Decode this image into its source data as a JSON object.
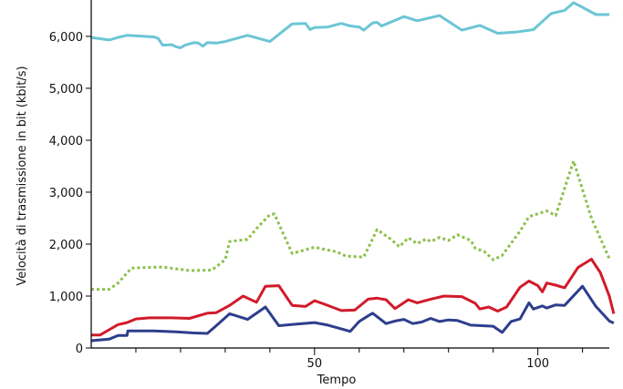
{
  "chart_data": {
    "type": "line",
    "title": "",
    "xlabel": "Tempo",
    "ylabel": "Velocità di trasmissione in bit (kbit/s)",
    "xlim": [
      0,
      116
    ],
    "ylim": [
      0,
      6700
    ],
    "x_ticks": [
      50,
      100
    ],
    "y_ticks": [
      0,
      1000,
      2000,
      3000,
      4000,
      5000,
      6000
    ],
    "y_tick_labels": [
      "0",
      "1,000",
      "2,000",
      "3,000",
      "4,000",
      "5,000",
      "6,000"
    ],
    "grid": false,
    "legend": "none",
    "series": [
      {
        "color": "#6cc5d6",
        "style": "solid",
        "points": [
          [
            0,
            5980
          ],
          [
            4,
            5930
          ],
          [
            6,
            5980
          ],
          [
            8,
            6020
          ],
          [
            14,
            5990
          ],
          [
            15,
            5960
          ],
          [
            16,
            5830
          ],
          [
            18,
            5840
          ],
          [
            19,
            5800
          ],
          [
            20,
            5780
          ],
          [
            21,
            5830
          ],
          [
            23,
            5880
          ],
          [
            24,
            5870
          ],
          [
            25,
            5810
          ],
          [
            26,
            5880
          ],
          [
            28,
            5870
          ],
          [
            30,
            5900
          ],
          [
            35,
            6020
          ],
          [
            40,
            5900
          ],
          [
            45,
            6240
          ],
          [
            48,
            6250
          ],
          [
            49,
            6130
          ],
          [
            50,
            6170
          ],
          [
            53,
            6180
          ],
          [
            56,
            6250
          ],
          [
            58,
            6200
          ],
          [
            60,
            6180
          ],
          [
            61,
            6120
          ],
          [
            63,
            6260
          ],
          [
            64,
            6270
          ],
          [
            65,
            6200
          ],
          [
            70,
            6380
          ],
          [
            73,
            6300
          ],
          [
            78,
            6400
          ],
          [
            83,
            6120
          ],
          [
            87,
            6210
          ],
          [
            91,
            6060
          ],
          [
            95,
            6080
          ],
          [
            99,
            6130
          ],
          [
            103,
            6440
          ],
          [
            106,
            6500
          ],
          [
            108,
            6650
          ],
          [
            110,
            6560
          ],
          [
            113,
            6420
          ],
          [
            116,
            6420
          ]
        ]
      },
      {
        "color": "#8cc04a",
        "style": "dotted",
        "points": [
          [
            0,
            1130
          ],
          [
            4,
            1130
          ],
          [
            6,
            1250
          ],
          [
            9,
            1540
          ],
          [
            16,
            1560
          ],
          [
            22,
            1490
          ],
          [
            27,
            1500
          ],
          [
            30,
            1700
          ],
          [
            31,
            2050
          ],
          [
            35,
            2090
          ],
          [
            37,
            2300
          ],
          [
            40,
            2570
          ],
          [
            41,
            2580
          ],
          [
            45,
            1820
          ],
          [
            50,
            1940
          ],
          [
            55,
            1850
          ],
          [
            57,
            1770
          ],
          [
            61,
            1750
          ],
          [
            63,
            2100
          ],
          [
            64,
            2280
          ],
          [
            67,
            2100
          ],
          [
            69,
            1950
          ],
          [
            71,
            2120
          ],
          [
            73,
            2010
          ],
          [
            75,
            2100
          ],
          [
            76,
            2050
          ],
          [
            78,
            2130
          ],
          [
            80,
            2070
          ],
          [
            82,
            2180
          ],
          [
            85,
            2070
          ],
          [
            86,
            1920
          ],
          [
            88,
            1860
          ],
          [
            90,
            1700
          ],
          [
            92,
            1780
          ],
          [
            96,
            2250
          ],
          [
            98,
            2530
          ],
          [
            102,
            2640
          ],
          [
            104,
            2550
          ],
          [
            108,
            3600
          ],
          [
            112,
            2500
          ],
          [
            116,
            1720
          ]
        ]
      },
      {
        "color": "#d21a2a",
        "style": "solid",
        "points": [
          [
            0,
            250
          ],
          [
            2,
            250
          ],
          [
            4,
            350
          ],
          [
            6,
            450
          ],
          [
            8,
            490
          ],
          [
            10,
            560
          ],
          [
            13,
            580
          ],
          [
            18,
            580
          ],
          [
            22,
            570
          ],
          [
            26,
            670
          ],
          [
            28,
            680
          ],
          [
            31,
            820
          ],
          [
            34,
            1000
          ],
          [
            37,
            880
          ],
          [
            39,
            1190
          ],
          [
            42,
            1200
          ],
          [
            45,
            820
          ],
          [
            48,
            800
          ],
          [
            50,
            910
          ],
          [
            52,
            850
          ],
          [
            56,
            720
          ],
          [
            59,
            730
          ],
          [
            62,
            940
          ],
          [
            64,
            960
          ],
          [
            66,
            930
          ],
          [
            68,
            760
          ],
          [
            71,
            930
          ],
          [
            73,
            870
          ],
          [
            76,
            940
          ],
          [
            79,
            1000
          ],
          [
            83,
            990
          ],
          [
            86,
            860
          ],
          [
            87,
            750
          ],
          [
            89,
            790
          ],
          [
            91,
            710
          ],
          [
            93,
            790
          ],
          [
            96,
            1170
          ],
          [
            98,
            1290
          ],
          [
            100,
            1200
          ],
          [
            101,
            1080
          ],
          [
            102,
            1250
          ],
          [
            104,
            1210
          ],
          [
            106,
            1160
          ],
          [
            109,
            1550
          ],
          [
            112,
            1710
          ],
          [
            114,
            1450
          ],
          [
            116,
            1000
          ],
          [
            117,
            660
          ]
        ]
      },
      {
        "color": "#2d3e8c",
        "style": "solid",
        "points": [
          [
            0,
            140
          ],
          [
            4,
            170
          ],
          [
            6,
            240
          ],
          [
            8,
            240
          ],
          [
            8.2,
            330
          ],
          [
            10,
            330
          ],
          [
            14,
            330
          ],
          [
            19,
            310
          ],
          [
            23,
            290
          ],
          [
            26,
            280
          ],
          [
            28,
            430
          ],
          [
            31,
            660
          ],
          [
            35,
            550
          ],
          [
            39,
            790
          ],
          [
            42,
            430
          ],
          [
            46,
            460
          ],
          [
            50,
            490
          ],
          [
            53,
            440
          ],
          [
            58,
            320
          ],
          [
            60,
            510
          ],
          [
            62,
            620
          ],
          [
            63,
            670
          ],
          [
            66,
            470
          ],
          [
            68,
            520
          ],
          [
            70,
            550
          ],
          [
            72,
            470
          ],
          [
            74,
            500
          ],
          [
            76,
            570
          ],
          [
            78,
            510
          ],
          [
            80,
            540
          ],
          [
            82,
            530
          ],
          [
            85,
            440
          ],
          [
            90,
            420
          ],
          [
            92,
            300
          ],
          [
            94,
            510
          ],
          [
            96,
            560
          ],
          [
            98,
            870
          ],
          [
            99,
            750
          ],
          [
            101,
            810
          ],
          [
            102,
            770
          ],
          [
            104,
            830
          ],
          [
            106,
            820
          ],
          [
            110,
            1190
          ],
          [
            113,
            800
          ],
          [
            116,
            520
          ],
          [
            117,
            480
          ]
        ]
      }
    ]
  }
}
